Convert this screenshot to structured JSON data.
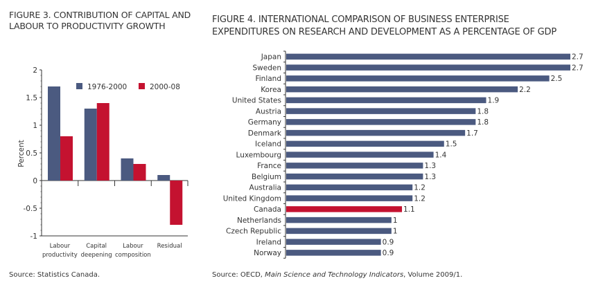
{
  "figure3": {
    "title": "FIGURE 3. CONTRIBUTION OF CAPITAL AND LABOUR TO PRODUCTIVITY GROWTH",
    "source": "Source: Statistics Canada."
  },
  "figure4": {
    "title_line1": "FIGURE 4. INTERNATIONAL COMPARISON OF BUSINESS ENTERPRISE",
    "title_line2": "EXPENDITURES ON RESEARCH AND DEVELOPMENT AS A PERCENTAGE OF GDP",
    "source_prefix": "Source: OECD, ",
    "source_italic": "Main Science and Technology Indicators",
    "source_suffix": ", Volume 2009/1."
  },
  "colors": {
    "series1": "#4b5a80",
    "series2": "#c41230",
    "axis": "#333333"
  },
  "chart_data": [
    {
      "type": "bar",
      "title": "FIGURE 3. CONTRIBUTION OF CAPITAL AND LABOUR TO PRODUCTIVITY GROWTH",
      "categories": [
        [
          "Labour",
          "productivity"
        ],
        [
          "Capital",
          "deepening"
        ],
        [
          "Labour",
          "composition"
        ],
        [
          "Residual"
        ]
      ],
      "series": [
        {
          "name": "1976-2000",
          "values": [
            1.7,
            1.3,
            0.4,
            0.1
          ]
        },
        {
          "name": "2000-08",
          "values": [
            0.8,
            1.4,
            0.3,
            -0.8
          ]
        }
      ],
      "xlabel": "",
      "ylabel": "Percent",
      "ylim": [
        -1,
        2
      ],
      "yticks": [
        "2",
        "1.5",
        "1",
        "0.5",
        "0",
        "-0.5",
        "-1"
      ],
      "ytick_values": [
        2,
        1.5,
        1,
        0.5,
        0,
        -0.5,
        -1
      ],
      "legend": "top-right",
      "grid": false
    },
    {
      "type": "bar",
      "orientation": "horizontal",
      "title": "FIGURE 4. INTERNATIONAL COMPARISON OF BUSINESS ENTERPRISE EXPENDITURES ON RESEARCH AND DEVELOPMENT AS A PERCENTAGE OF GDP",
      "categories": [
        "Japan",
        "Sweden",
        "Finland",
        "Korea",
        "United States",
        "Austria",
        "Germany",
        "Denmark",
        "Iceland",
        "Luxembourg",
        "France",
        "Belgium",
        "Australia",
        "United Kingdom",
        "Canada",
        "Netherlands",
        "Czech Republic",
        "Ireland",
        "Norway"
      ],
      "values": [
        2.7,
        2.7,
        2.5,
        2.2,
        1.9,
        1.8,
        1.8,
        1.7,
        1.5,
        1.4,
        1.3,
        1.3,
        1.2,
        1.2,
        1.1,
        1,
        1,
        0.9,
        0.9
      ],
      "labels": [
        "2.7",
        "2.7",
        "2.5",
        "2.2",
        "1.9",
        "1.8",
        "1.8",
        "1.7",
        "1.5",
        "1.4",
        "1.3",
        "1.3",
        "1.2",
        "1.2",
        "1.1",
        "1",
        "1",
        "0.9",
        "0.9"
      ],
      "highlight": "Canada",
      "xlim": [
        0,
        2.7
      ],
      "grid": false
    }
  ]
}
